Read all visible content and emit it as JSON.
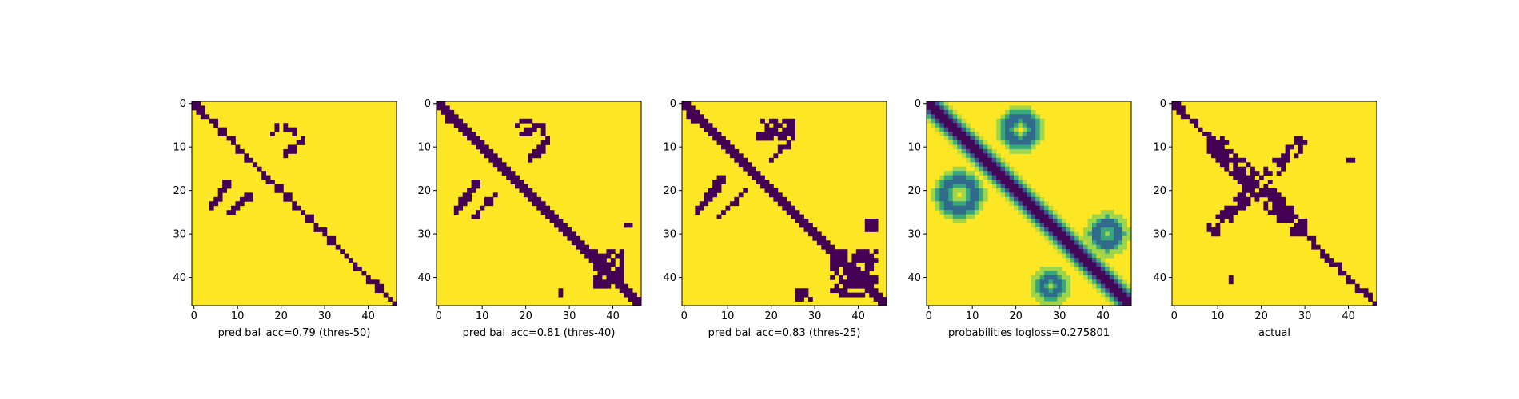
{
  "chart_data": [
    {
      "type": "heatmap",
      "variant": "binary",
      "xlabel": "pred bal_acc=0.79 (thres-50)",
      "size": 47,
      "xticks": [
        0,
        10,
        20,
        30,
        40
      ],
      "yticks": [
        0,
        10,
        20,
        30,
        40
      ],
      "colors": {
        "low": "#440154",
        "high": "#fde725"
      },
      "dark_regions": [
        {
          "kind": "diagonal",
          "from": 0,
          "to": 46,
          "width": 2
        },
        {
          "kind": "blob",
          "rows": [
            5,
            7
          ],
          "cols": [
            18,
            23
          ]
        },
        {
          "kind": "arc",
          "rows": [
            8,
            12
          ],
          "cols": [
            21,
            25
          ]
        },
        {
          "kind": "arc",
          "rows": [
            18,
            24
          ],
          "cols": [
            4,
            8
          ]
        },
        {
          "kind": "arc",
          "rows": [
            21,
            25
          ],
          "cols": [
            8,
            13
          ]
        }
      ]
    },
    {
      "type": "heatmap",
      "variant": "binary",
      "xlabel": "pred bal_acc=0.81 (thres-40)",
      "size": 47,
      "xticks": [
        0,
        10,
        20,
        30,
        40
      ],
      "yticks": [
        0,
        10,
        20,
        30,
        40
      ],
      "colors": {
        "low": "#440154",
        "high": "#fde725"
      },
      "dark_regions": [
        {
          "kind": "diagonal",
          "from": 0,
          "to": 46,
          "width": 2.5
        },
        {
          "kind": "blob",
          "rows": [
            4,
            7
          ],
          "cols": [
            18,
            24
          ]
        },
        {
          "kind": "arc",
          "rows": [
            8,
            13
          ],
          "cols": [
            21,
            25
          ]
        },
        {
          "kind": "arc",
          "rows": [
            18,
            25
          ],
          "cols": [
            4,
            9
          ]
        },
        {
          "kind": "arc",
          "rows": [
            21,
            26
          ],
          "cols": [
            8,
            13
          ]
        },
        {
          "kind": "blob",
          "rows": [
            34,
            42
          ],
          "cols": [
            36,
            42
          ]
        },
        {
          "kind": "dot",
          "rows": [
            28,
            28
          ],
          "cols": [
            43,
            44
          ]
        },
        {
          "kind": "dot",
          "rows": [
            43,
            44
          ],
          "cols": [
            28,
            28
          ]
        }
      ]
    },
    {
      "type": "heatmap",
      "variant": "binary",
      "xlabel": "pred bal_acc=0.83 (thres-25)",
      "size": 47,
      "xticks": [
        0,
        10,
        20,
        30,
        40
      ],
      "yticks": [
        0,
        10,
        20,
        30,
        40
      ],
      "colors": {
        "low": "#440154",
        "high": "#fde725"
      },
      "dark_regions": [
        {
          "kind": "diagonal",
          "from": 0,
          "to": 46,
          "width": 3
        },
        {
          "kind": "blob",
          "rows": [
            4,
            8
          ],
          "cols": [
            17,
            25
          ]
        },
        {
          "kind": "arc",
          "rows": [
            8,
            13
          ],
          "cols": [
            20,
            25
          ]
        },
        {
          "kind": "arc",
          "rows": [
            17,
            25
          ],
          "cols": [
            3,
            9
          ]
        },
        {
          "kind": "arc",
          "rows": [
            20,
            26
          ],
          "cols": [
            8,
            14
          ]
        },
        {
          "kind": "blob",
          "rows": [
            34,
            44
          ],
          "cols": [
            34,
            44
          ]
        },
        {
          "kind": "dot",
          "rows": [
            27,
            29
          ],
          "cols": [
            42,
            44
          ]
        },
        {
          "kind": "dot",
          "rows": [
            43,
            45
          ],
          "cols": [
            26,
            29
          ]
        }
      ]
    },
    {
      "type": "heatmap",
      "variant": "probability",
      "xlabel": "probabilities logloss=0.275801",
      "size": 47,
      "xticks": [
        0,
        10,
        20,
        30,
        40
      ],
      "yticks": [
        0,
        10,
        20,
        30,
        40
      ],
      "colormap": "viridis",
      "dark_regions": [
        {
          "kind": "diagonal",
          "from": 0,
          "to": 46,
          "width": 3
        },
        {
          "kind": "loop",
          "center": [
            6,
            21
          ],
          "radius": 3
        },
        {
          "kind": "loop",
          "center": [
            21,
            7
          ],
          "radius": 3.5
        },
        {
          "kind": "loop",
          "center": [
            30,
            41
          ],
          "radius": 2.5
        },
        {
          "kind": "loop",
          "center": [
            42,
            28
          ],
          "radius": 2
        }
      ]
    },
    {
      "type": "heatmap",
      "variant": "binary",
      "xlabel": "actual",
      "size": 47,
      "xticks": [
        0,
        10,
        20,
        30,
        40
      ],
      "yticks": [
        0,
        10,
        20,
        30,
        40
      ],
      "colors": {
        "low": "#440154",
        "high": "#fde725"
      },
      "dark_regions": [
        {
          "kind": "diagonal",
          "from": 0,
          "to": 46,
          "width": 2
        },
        {
          "kind": "antidiagonal_blob",
          "rows": [
            8,
            30
          ],
          "cols": [
            8,
            30
          ]
        },
        {
          "kind": "dot",
          "rows": [
            13,
            13
          ],
          "cols": [
            40,
            41
          ]
        },
        {
          "kind": "dot",
          "rows": [
            40,
            41
          ],
          "cols": [
            13,
            13
          ]
        }
      ]
    }
  ]
}
